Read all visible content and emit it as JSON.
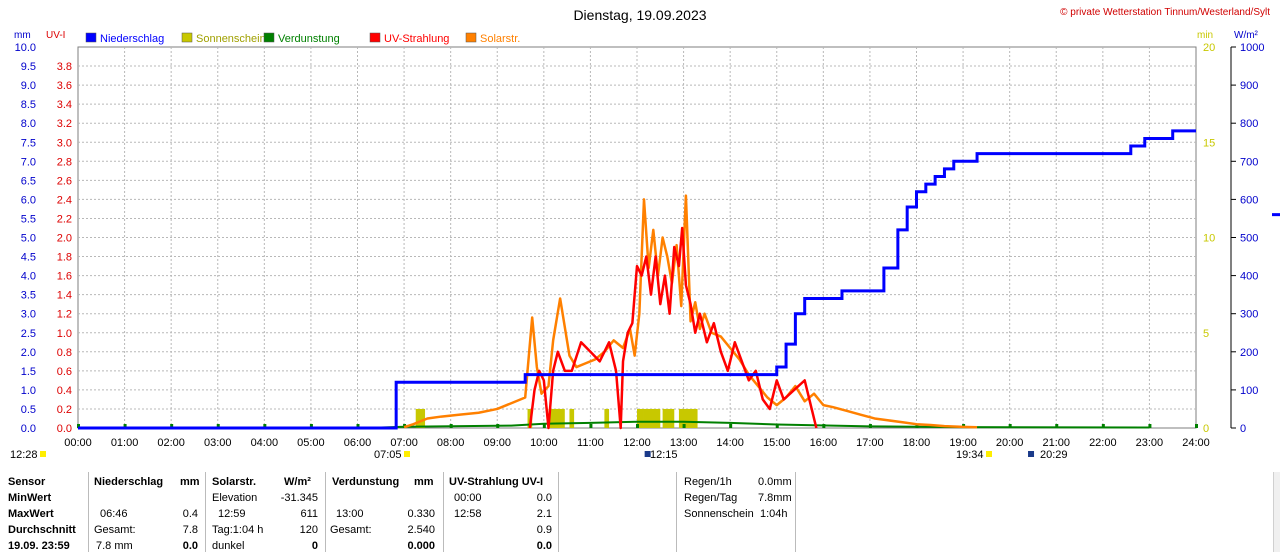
{
  "title": "Dienstag, 19.09.2023",
  "copyright": "© private Wetterstation Tinnum/Westerland/Sylt",
  "colors": {
    "niederschlag": "#0000ff",
    "sonnenschein": "#c8c800",
    "verdunstung": "#008000",
    "uv": "#ff0000",
    "solar": "#ff8000",
    "grid": "#b8b8b8",
    "frame": "#7f7f7f",
    "text": "#000000"
  },
  "chart_data": {
    "type": "line",
    "axes": {
      "left_mm": {
        "unit": "mm",
        "min": 0,
        "max": 10,
        "step": 0.5
      },
      "left_uv": {
        "unit": "UV-I",
        "min": 0,
        "max": 4,
        "step": 0.2,
        "top_label": 3.8
      },
      "right_min": {
        "unit": "min",
        "min": 0,
        "max": 20,
        "ticks": [
          0,
          5,
          10,
          15,
          20
        ]
      },
      "right_wm2": {
        "unit": "W/m²",
        "min": 0,
        "max": 1000,
        "step": 100
      },
      "x": {
        "min": 0,
        "max": 24,
        "labels": [
          "00:00",
          "01:00",
          "02:00",
          "03:00",
          "04:00",
          "05:00",
          "06:00",
          "07:00",
          "08:00",
          "09:00",
          "10:00",
          "11:00",
          "12:00",
          "13:00",
          "14:00",
          "15:00",
          "16:00",
          "17:00",
          "18:00",
          "19:00",
          "20:00",
          "21:00",
          "22:00",
          "23:00",
          "24:00"
        ]
      }
    },
    "legend": [
      "Niederschlag",
      "Sonnenschein",
      "Verdunstung",
      "UV-Strahlung",
      "Solarstr."
    ],
    "series": [
      {
        "name": "Niederschlag",
        "axis": "left_mm",
        "x": [
          0,
          6.7,
          6.83,
          6.9,
          9.55,
          9.6,
          15.0,
          15.2,
          15.4,
          15.6,
          16.3,
          16.4,
          17.0,
          17.3,
          17.6,
          17.8,
          18.0,
          18.2,
          18.4,
          18.6,
          18.8,
          19.3,
          22.3,
          22.6,
          22.9,
          23.5
        ],
        "y": [
          0,
          0,
          1.2,
          1.2,
          1.2,
          1.4,
          1.6,
          2.2,
          3.0,
          3.4,
          3.4,
          3.6,
          3.6,
          4.2,
          5.2,
          5.8,
          6.2,
          6.4,
          6.6,
          6.8,
          7.0,
          7.2,
          7.2,
          7.4,
          7.6,
          7.8
        ]
      },
      {
        "name": "Solarstr.",
        "axis": "right_wm2",
        "x": [
          7.0,
          7.2,
          7.5,
          7.8,
          8.2,
          8.6,
          9.0,
          9.3,
          9.6,
          9.75,
          9.85,
          9.95,
          10.1,
          10.2,
          10.35,
          10.55,
          10.7,
          10.9,
          11.1,
          11.3,
          11.5,
          11.7,
          11.85,
          11.95,
          12.05,
          12.15,
          12.25,
          12.35,
          12.45,
          12.55,
          12.65,
          12.75,
          12.85,
          12.95,
          13.05,
          13.15,
          13.25,
          13.35,
          13.45,
          13.6,
          13.8,
          14.0,
          14.2,
          14.4,
          14.6,
          14.8,
          15.0,
          15.2,
          15.4,
          15.6,
          15.8,
          16.0,
          16.2,
          16.5,
          16.8,
          17.1,
          17.4,
          17.7,
          18.0,
          18.3,
          18.6,
          19.0,
          19.3
        ],
        "y": [
          2,
          10,
          25,
          30,
          35,
          40,
          50,
          65,
          80,
          290,
          160,
          90,
          110,
          230,
          340,
          190,
          160,
          170,
          180,
          200,
          230,
          210,
          260,
          190,
          300,
          600,
          420,
          520,
          400,
          500,
          450,
          380,
          480,
          320,
          610,
          280,
          330,
          260,
          300,
          250,
          240,
          210,
          180,
          140,
          110,
          80,
          60,
          80,
          110,
          70,
          90,
          60,
          55,
          45,
          35,
          25,
          20,
          15,
          10,
          8,
          5,
          3,
          2
        ]
      },
      {
        "name": "UV-Strahlung",
        "axis": "left_uv",
        "x": [
          9.7,
          9.8,
          9.9,
          10.0,
          10.1,
          10.2,
          10.3,
          10.45,
          10.6,
          10.8,
          11.0,
          11.2,
          11.4,
          11.55,
          11.65,
          11.7,
          11.8,
          11.9,
          12.0,
          12.1,
          12.2,
          12.3,
          12.4,
          12.5,
          12.6,
          12.7,
          12.8,
          12.9,
          12.97,
          13.05,
          13.15,
          13.25,
          13.35,
          13.5,
          13.65,
          13.8,
          13.95,
          14.1,
          14.25,
          14.4,
          14.55,
          14.7,
          14.85,
          15.0,
          15.15,
          15.6,
          15.75,
          15.85
        ],
        "y": [
          0,
          0.4,
          0.6,
          0.5,
          0,
          0.6,
          0.8,
          0.6,
          0.6,
          0.9,
          0.8,
          0.7,
          0.9,
          0.6,
          0,
          0.7,
          1.0,
          1.1,
          1.7,
          1.6,
          1.8,
          1.4,
          1.8,
          1.3,
          1.6,
          1.2,
          1.9,
          1.7,
          2.1,
          1.5,
          1.3,
          1.0,
          1.2,
          0.9,
          1.1,
          0.8,
          0.6,
          0.9,
          0.7,
          0.5,
          0.6,
          0.3,
          0.2,
          0.5,
          0.3,
          0.5,
          0.2,
          0
        ]
      },
      {
        "name": "Sonnenschein",
        "axis": "right_min",
        "x": [
          7.25,
          9.65,
          10.1,
          10.55,
          11.3,
          12.0,
          12.15,
          12.55,
          12.9
        ],
        "widths_h": [
          0.2,
          0.1,
          0.35,
          0.1,
          0.1,
          0.15,
          0.35,
          0.25,
          0.4
        ],
        "y": [
          1.0,
          1.0,
          1.0,
          1.0,
          1.0,
          1.0,
          1.0,
          1.0,
          1.0
        ]
      },
      {
        "name": "Verdunstung",
        "axis": "left_mm",
        "x": [
          0,
          2.0,
          6.5,
          7.0,
          9.3,
          10.0,
          11.0,
          12.0,
          13.0,
          14.0,
          15.0,
          17.0,
          19.0,
          23.0
        ],
        "y": [
          0,
          0,
          0,
          0.02,
          0.05,
          0.1,
          0.12,
          0.15,
          0.15,
          0.12,
          0.08,
          0.03,
          0.01,
          0
        ]
      }
    ],
    "markers": [
      {
        "label": "12:28",
        "hour": 0
      },
      {
        "label": "07:05",
        "hour": 7.08
      },
      {
        "label": "12:15",
        "hour": 12.25
      },
      {
        "label": "19:34",
        "hour": 19.57
      },
      {
        "label": "20:29",
        "hour": 20.48
      }
    ]
  },
  "stats": {
    "row_labels": [
      "Sensor",
      "MinWert",
      "MaxWert",
      "Durchschnitt",
      "19.09. 23:59"
    ],
    "niederschlag": {
      "header": "Niederschlag",
      "unit": "mm",
      "max_time": "06:46",
      "max_val": "0.4",
      "gesamt_label": "Gesamt:",
      "gesamt_val": "7.8",
      "last_val": "7.8 mm",
      "last_bold": "0.0"
    },
    "solar": {
      "header": "Solarstr.",
      "unit": "W/m²",
      "elev_label": "Elevation",
      "elev_val": "-31.345",
      "max_time": "12:59",
      "max_val": "611",
      "tag_label": "Tag:1:04 h",
      "tag_val": "120",
      "dunkel_label": "dunkel",
      "dunkel_val": "0"
    },
    "verdunstung": {
      "header": "Verdunstung",
      "unit": "mm",
      "max_time": "13:00",
      "max_val": "0.330",
      "gesamt_label": "Gesamt:",
      "gesamt_val": "2.540",
      "last_val": "0.000"
    },
    "uv": {
      "header": "UV-Strahlung UV-I",
      "min_time": "00:00",
      "min_val": "0.0",
      "max_time": "12:58",
      "max_val": "2.1",
      "avg_val": "0.9",
      "last_val": "0.0"
    },
    "summary": [
      {
        "label": "Regen/1h",
        "value": "0.0mm"
      },
      {
        "label": "Regen/Tag",
        "value": "7.8mm"
      },
      {
        "label": "Sonnenschein",
        "value": "1:04h"
      }
    ]
  }
}
